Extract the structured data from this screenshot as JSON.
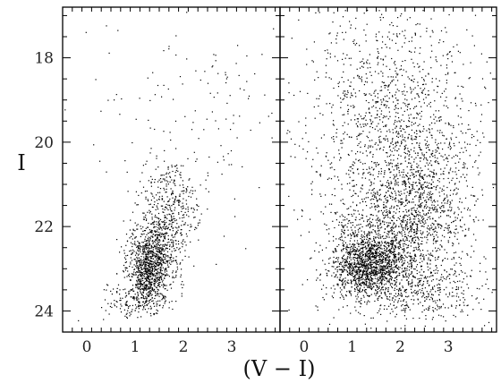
{
  "chart_data": [
    {
      "type": "scatter",
      "panel": "left",
      "xlabel": "(V − I)",
      "ylabel": "I",
      "xlim": [
        -0.5,
        4.0
      ],
      "ylim": [
        24.5,
        16.8
      ],
      "y_inverted": true,
      "grid": false,
      "xticks": [
        0,
        1,
        2,
        3
      ],
      "yticks": [
        18,
        20,
        22,
        24
      ],
      "point_color": "#000000",
      "description_of_points": "red giant branch concentrated at (V-I)~1.2, I~23; sparse foreground stars",
      "clusters": [
        {
          "cx": 1.25,
          "cy": 23.0,
          "sx": 0.22,
          "sy": 0.45,
          "n": 900
        },
        {
          "cx": 1.55,
          "cy": 22.2,
          "sx": 0.25,
          "sy": 0.6,
          "n": 500
        },
        {
          "cx": 1.8,
          "cy": 21.3,
          "sx": 0.25,
          "sy": 0.5,
          "n": 180
        },
        {
          "cx": 2.2,
          "cy": 19.5,
          "sx": 1.1,
          "sy": 1.6,
          "n": 160
        },
        {
          "cx": 1.0,
          "cy": 23.8,
          "sx": 0.35,
          "sy": 0.2,
          "n": 120
        }
      ]
    },
    {
      "type": "scatter",
      "panel": "right",
      "xlabel": "(V − I)",
      "xlim": [
        -0.5,
        4.0
      ],
      "ylim": [
        24.5,
        16.8
      ],
      "y_inverted": true,
      "grid": false,
      "xticks": [
        0,
        1,
        2,
        3
      ],
      "yticks": [
        18,
        20,
        22,
        24
      ],
      "point_color": "#000000",
      "description_of_points": "dense red giant branch at (V-I)~1.3, I~23 plus broad plume of bright stars 0.5<(V-I)<3.5",
      "clusters": [
        {
          "cx": 1.3,
          "cy": 22.9,
          "sx": 0.35,
          "sy": 0.35,
          "n": 1100
        },
        {
          "cx": 1.6,
          "cy": 22.3,
          "sx": 0.6,
          "sy": 0.6,
          "n": 700
        },
        {
          "cx": 2.4,
          "cy": 21.5,
          "sx": 0.55,
          "sy": 0.9,
          "n": 900
        },
        {
          "cx": 1.8,
          "cy": 19.5,
          "sx": 0.9,
          "sy": 1.4,
          "n": 1300
        },
        {
          "cx": 2.2,
          "cy": 23.5,
          "sx": 0.8,
          "sy": 0.35,
          "n": 500
        }
      ]
    }
  ],
  "labels": {
    "ylabel": "I",
    "xlabel": "(V − I)"
  }
}
